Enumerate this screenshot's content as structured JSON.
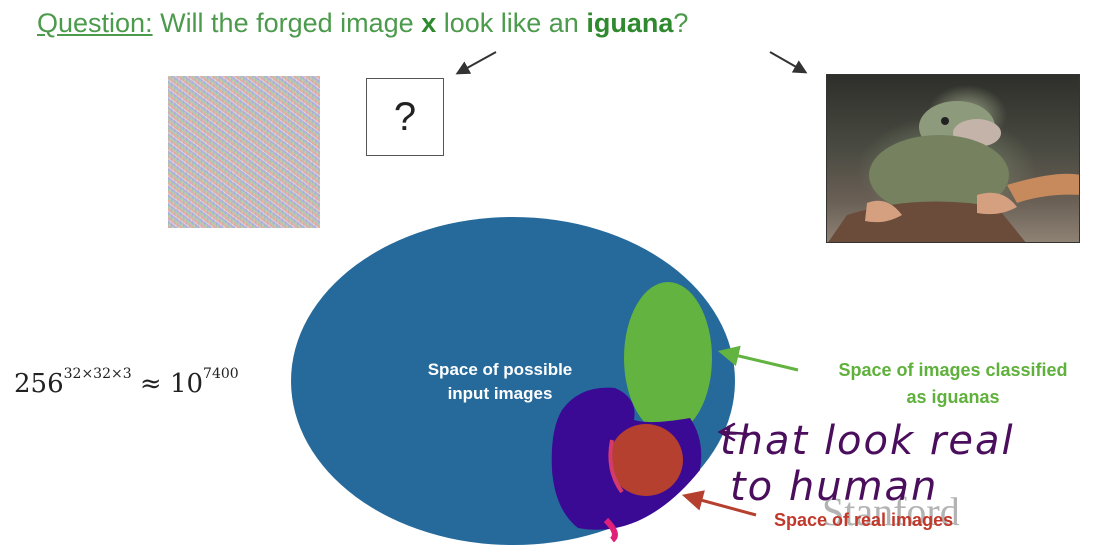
{
  "question": {
    "label": "Question:",
    "text_before": " Will the forged image ",
    "x": "x",
    "text_middle": " look like an ",
    "iguana": "iguana",
    "text_end": "?"
  },
  "unknown_box": {
    "symbol": "?"
  },
  "formula": {
    "base": "256",
    "exponent": "32×32×3",
    "approx": " ≈ 10",
    "result_exponent": "7400"
  },
  "diagram": {
    "possible_line1": "Space of possible",
    "possible_line2": "input images",
    "iguanas_line1": "Space of images classified",
    "iguanas_line2": "as iguanas",
    "real": "Space of real images"
  },
  "handwriting": {
    "line1": "that look real",
    "line2": "to human"
  },
  "watermark": "Stanford",
  "colors": {
    "possible": "#256a9b",
    "iguanas": "#62b33f",
    "real": "#b5402f",
    "annotation": "#3a0a95"
  }
}
